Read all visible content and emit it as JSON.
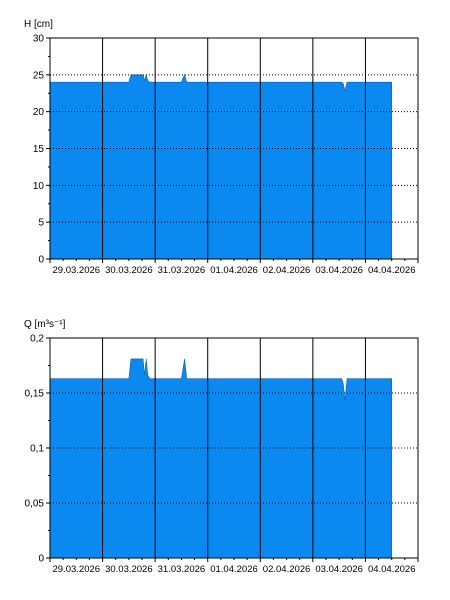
{
  "chart_data": [
    {
      "type": "area",
      "ylabel": "H [cm]",
      "ylim": [
        0,
        30
      ],
      "yticks": [
        "0",
        "5",
        "10",
        "15",
        "20",
        "25",
        "30"
      ],
      "ytick_values": [
        0,
        5,
        10,
        15,
        20,
        25,
        30
      ],
      "xlim": [
        0,
        7
      ],
      "xticks": [
        "29.03.2026",
        "30.03.2026",
        "31.03.2026",
        "01.04.2026",
        "02.04.2026",
        "03.04.2026",
        "04.04.2026"
      ],
      "grid": true,
      "fill_color": "#0a8af0",
      "series": [
        {
          "x": [
            0,
            1.5,
            1.54,
            1.77,
            1.8,
            1.83,
            1.86,
            1.9,
            1.94,
            2.5,
            2.53,
            2.56,
            2.6,
            5.55,
            5.58,
            5.61,
            5.65,
            6.5
          ],
          "values": [
            24,
            24,
            25,
            25,
            24.2,
            25,
            24.2,
            24,
            24,
            24,
            24.6,
            25,
            24,
            24,
            23.8,
            22.8,
            24,
            24
          ]
        }
      ]
    },
    {
      "type": "area",
      "ylabel": "Q [m³s⁻¹]",
      "ylim": [
        0,
        0.2
      ],
      "yticks": [
        "0",
        "0,05",
        "0,1",
        "0,15",
        "0,2"
      ],
      "ytick_values": [
        0,
        0.05,
        0.1,
        0.15,
        0.2
      ],
      "xlim": [
        0,
        7
      ],
      "xticks": [
        "29.03.2026",
        "30.03.2026",
        "31.03.2026",
        "01.04.2026",
        "02.04.2026",
        "03.04.2026",
        "04.04.2026"
      ],
      "grid": true,
      "fill_color": "#0a8af0",
      "series": [
        {
          "x": [
            0,
            1.5,
            1.54,
            1.77,
            1.8,
            1.83,
            1.86,
            1.9,
            1.94,
            2.5,
            2.53,
            2.56,
            2.6,
            5.55,
            5.58,
            5.61,
            5.65,
            6.5
          ],
          "values": [
            0.163,
            0.163,
            0.181,
            0.181,
            0.166,
            0.181,
            0.166,
            0.163,
            0.163,
            0.163,
            0.172,
            0.181,
            0.163,
            0.163,
            0.158,
            0.143,
            0.163,
            0.163
          ]
        }
      ]
    }
  ]
}
